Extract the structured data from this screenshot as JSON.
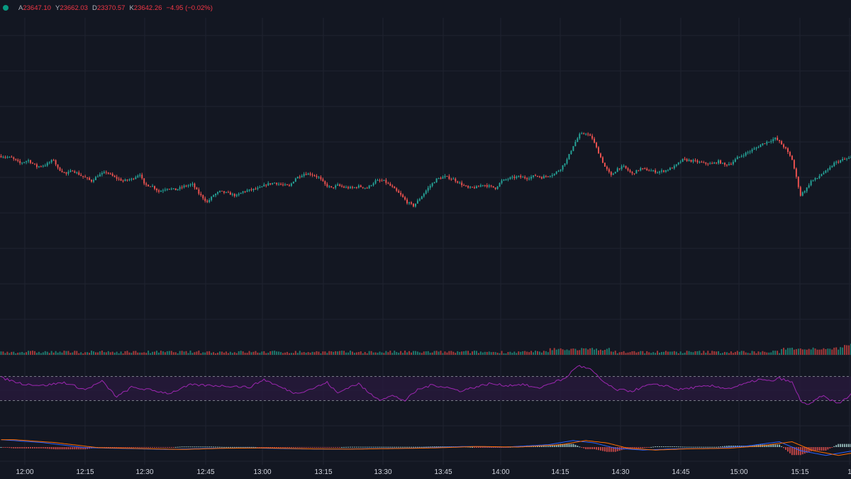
{
  "legend": {
    "status_color": "#089981",
    "open_label": "A",
    "open": "23647.10",
    "high_label": "Y",
    "high": "23662.03",
    "low_label": "D",
    "low": "23370.57",
    "close_label": "K",
    "close": "23642.26",
    "change": "−4.95 (−0.02%)"
  },
  "colors": {
    "background": "#131722",
    "up": "#26a69a",
    "down": "#ef5350",
    "rsi_line": "#9c27b0",
    "rsi_band": "#2a1a3e",
    "grid": "#1f2330"
  },
  "chart_data": {
    "type": "candlestick",
    "x_ticks": [
      "12:00",
      "12:15",
      "12:30",
      "12:45",
      "13:00",
      "13:15",
      "13:30",
      "13:45",
      "14:00",
      "14:15",
      "14:30",
      "14:45",
      "15:00",
      "15:15",
      "1"
    ],
    "price_ylim": [
      23200,
      24000
    ],
    "price_path": [
      [
        0,
        23610
      ],
      [
        5,
        23605
      ],
      [
        9,
        23590
      ],
      [
        13,
        23598
      ],
      [
        17,
        23580
      ],
      [
        21,
        23585
      ],
      [
        25,
        23600
      ],
      [
        27,
        23575
      ],
      [
        31,
        23560
      ],
      [
        34,
        23570
      ],
      [
        38,
        23555
      ],
      [
        43,
        23540
      ],
      [
        46,
        23555
      ],
      [
        50,
        23565
      ],
      [
        54,
        23550
      ],
      [
        58,
        23540
      ],
      [
        62,
        23545
      ],
      [
        66,
        23560
      ],
      [
        68,
        23530
      ],
      [
        72,
        23525
      ],
      [
        75,
        23510
      ],
      [
        79,
        23520
      ],
      [
        83,
        23515
      ],
      [
        87,
        23525
      ],
      [
        91,
        23530
      ],
      [
        94,
        23505
      ],
      [
        98,
        23480
      ],
      [
        101,
        23500
      ],
      [
        104,
        23510
      ],
      [
        108,
        23505
      ],
      [
        112,
        23498
      ],
      [
        115,
        23510
      ],
      [
        119,
        23515
      ],
      [
        123,
        23520
      ],
      [
        126,
        23530
      ],
      [
        130,
        23535
      ],
      [
        133,
        23530
      ],
      [
        137,
        23525
      ],
      [
        140,
        23548
      ],
      [
        144,
        23560
      ],
      [
        147,
        23560
      ],
      [
        151,
        23550
      ],
      [
        154,
        23530
      ],
      [
        157,
        23520
      ],
      [
        160,
        23528
      ],
      [
        163,
        23522
      ],
      [
        167,
        23520
      ],
      [
        170,
        23525
      ],
      [
        174,
        23520
      ],
      [
        178,
        23540
      ],
      [
        182,
        23540
      ],
      [
        186,
        23522
      ],
      [
        190,
        23500
      ],
      [
        193,
        23480
      ],
      [
        196,
        23470
      ],
      [
        199,
        23490
      ],
      [
        203,
        23520
      ],
      [
        207,
        23545
      ],
      [
        211,
        23552
      ],
      [
        215,
        23545
      ],
      [
        219,
        23530
      ],
      [
        222,
        23520
      ],
      [
        226,
        23522
      ],
      [
        229,
        23530
      ],
      [
        232,
        23525
      ],
      [
        235,
        23520
      ],
      [
        238,
        23540
      ],
      [
        242,
        23548
      ],
      [
        246,
        23552
      ],
      [
        250,
        23548
      ],
      [
        254,
        23555
      ],
      [
        257,
        23550
      ],
      [
        260,
        23555
      ],
      [
        263,
        23560
      ],
      [
        266,
        23575
      ],
      [
        269,
        23600
      ],
      [
        272,
        23640
      ],
      [
        275,
        23670
      ],
      [
        278,
        23675
      ],
      [
        281,
        23660
      ],
      [
        284,
        23620
      ],
      [
        287,
        23580
      ],
      [
        290,
        23555
      ],
      [
        293,
        23575
      ],
      [
        296,
        23580
      ],
      [
        300,
        23560
      ],
      [
        304,
        23575
      ],
      [
        308,
        23570
      ],
      [
        312,
        23565
      ],
      [
        316,
        23570
      ],
      [
        320,
        23580
      ],
      [
        324,
        23600
      ],
      [
        327,
        23598
      ],
      [
        330,
        23595
      ],
      [
        334,
        23590
      ],
      [
        338,
        23588
      ],
      [
        341,
        23595
      ],
      [
        344,
        23585
      ],
      [
        347,
        23590
      ],
      [
        350,
        23605
      ],
      [
        354,
        23618
      ],
      [
        358,
        23630
      ],
      [
        362,
        23645
      ],
      [
        365,
        23652
      ],
      [
        368,
        23660
      ],
      [
        370,
        23650
      ],
      [
        373,
        23630
      ],
      [
        376,
        23600
      ],
      [
        378,
        23550
      ],
      [
        380,
        23500
      ],
      [
        383,
        23520
      ],
      [
        385,
        23540
      ],
      [
        388,
        23548
      ],
      [
        390,
        23560
      ],
      [
        393,
        23570
      ],
      [
        396,
        23590
      ],
      [
        400,
        23600
      ],
      [
        404,
        23605
      ]
    ],
    "rsi_ylim": [
      0,
      100
    ],
    "rsi_levels": [
      70,
      30
    ],
    "rsi_path": [
      [
        0,
        68
      ],
      [
        10,
        58
      ],
      [
        20,
        55
      ],
      [
        30,
        60
      ],
      [
        40,
        48
      ],
      [
        48,
        62
      ],
      [
        55,
        36
      ],
      [
        62,
        52
      ],
      [
        70,
        48
      ],
      [
        80,
        42
      ],
      [
        90,
        56
      ],
      [
        100,
        55
      ],
      [
        110,
        54
      ],
      [
        118,
        52
      ],
      [
        125,
        65
      ],
      [
        133,
        52
      ],
      [
        140,
        42
      ],
      [
        148,
        50
      ],
      [
        155,
        60
      ],
      [
        160,
        42
      ],
      [
        165,
        52
      ],
      [
        170,
        58
      ],
      [
        175,
        42
      ],
      [
        180,
        32
      ],
      [
        186,
        38
      ],
      [
        192,
        30
      ],
      [
        198,
        48
      ],
      [
        205,
        56
      ],
      [
        212,
        52
      ],
      [
        218,
        46
      ],
      [
        225,
        52
      ],
      [
        232,
        58
      ],
      [
        240,
        55
      ],
      [
        248,
        57
      ],
      [
        255,
        50
      ],
      [
        262,
        60
      ],
      [
        268,
        66
      ],
      [
        274,
        88
      ],
      [
        280,
        82
      ],
      [
        286,
        62
      ],
      [
        292,
        48
      ],
      [
        300,
        46
      ],
      [
        308,
        56
      ],
      [
        316,
        55
      ],
      [
        322,
        48
      ],
      [
        330,
        52
      ],
      [
        338,
        54
      ],
      [
        346,
        50
      ],
      [
        354,
        58
      ],
      [
        360,
        65
      ],
      [
        366,
        62
      ],
      [
        370,
        67
      ],
      [
        376,
        60
      ],
      [
        380,
        30
      ],
      [
        384,
        22
      ],
      [
        390,
        38
      ],
      [
        398,
        25
      ],
      [
        404,
        40
      ]
    ],
    "macd_ylim": [
      -60,
      60
    ],
    "macd_path": [
      [
        0,
        25
      ],
      [
        20,
        15
      ],
      [
        40,
        -2
      ],
      [
        60,
        -5
      ],
      [
        80,
        -8
      ],
      [
        100,
        -4
      ],
      [
        120,
        -3
      ],
      [
        140,
        -6
      ],
      [
        160,
        -7
      ],
      [
        180,
        -5
      ],
      [
        200,
        -3
      ],
      [
        220,
        2
      ],
      [
        240,
        0
      ],
      [
        260,
        8
      ],
      [
        272,
        22
      ],
      [
        282,
        14
      ],
      [
        292,
        -4
      ],
      [
        305,
        -10
      ],
      [
        320,
        -6
      ],
      [
        340,
        -4
      ],
      [
        355,
        4
      ],
      [
        370,
        18
      ],
      [
        380,
        -12
      ],
      [
        392,
        -28
      ],
      [
        404,
        -14
      ]
    ]
  }
}
